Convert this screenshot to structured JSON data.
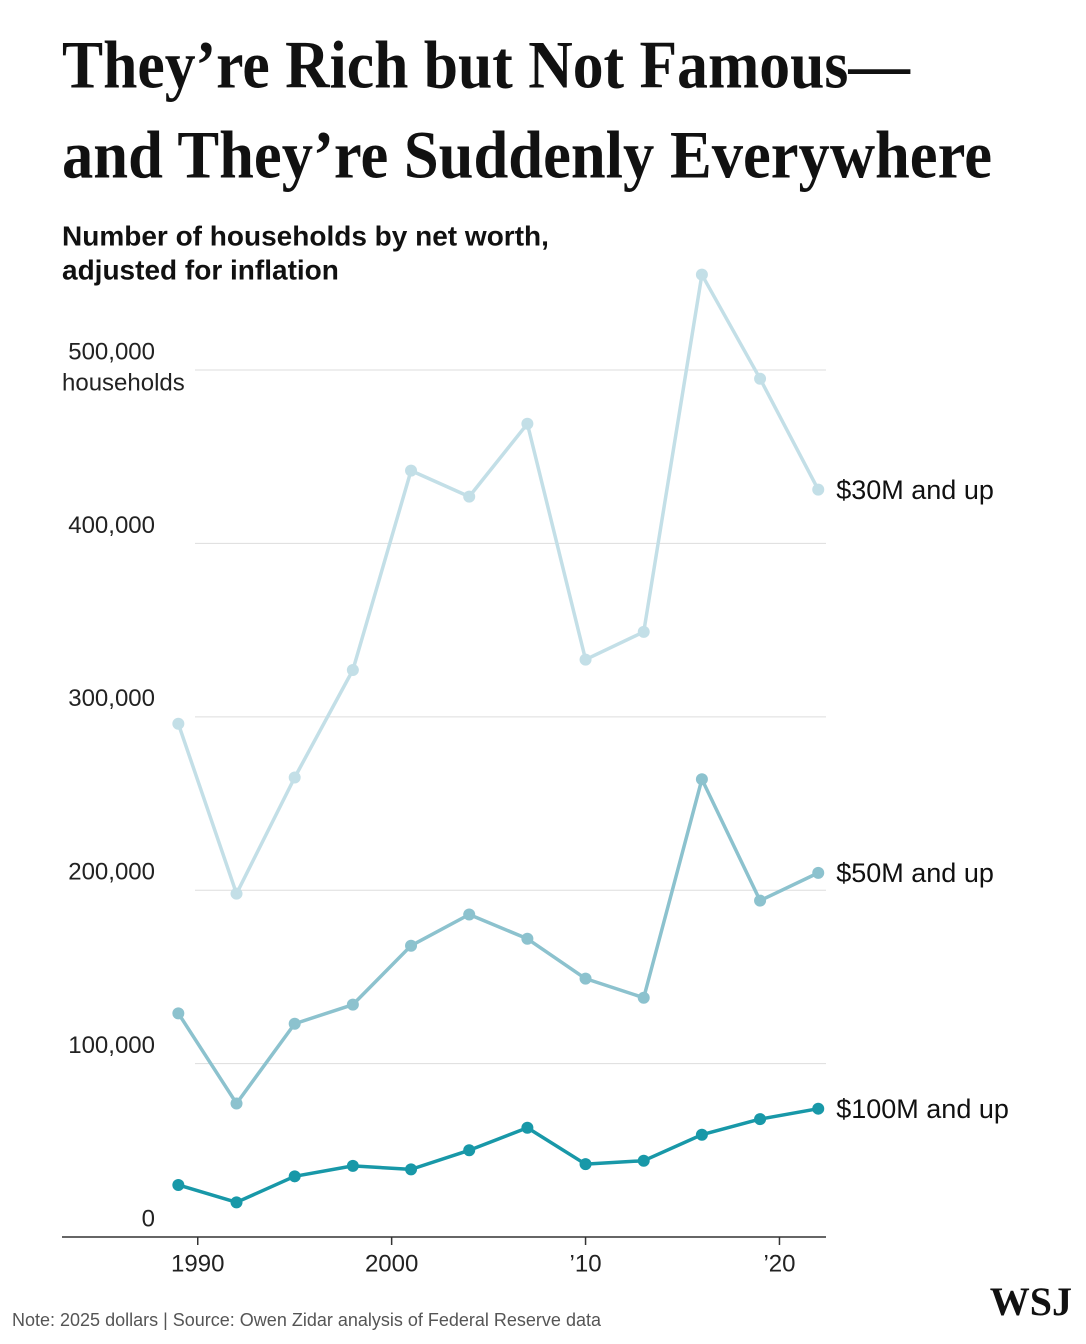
{
  "chart_data": {
    "type": "line",
    "title": [
      "They’re Rich but Not Famous—",
      "and They’re Suddenly Everywhere"
    ],
    "subtitle": [
      "Number of households by net worth,",
      "adjusted for inflation"
    ],
    "y_unit_label": "households",
    "x": [
      1989,
      1992,
      1995,
      1998,
      2001,
      2004,
      2007,
      2010,
      2013,
      2016,
      2019,
      2022
    ],
    "series": [
      {
        "name": "$30M and up",
        "color": "#c3dfe7",
        "values": [
          296000,
          198000,
          265000,
          327000,
          442000,
          427000,
          469000,
          333000,
          349000,
          555000,
          495000,
          431000
        ]
      },
      {
        "name": "$50M and up",
        "color": "#8cc2ce",
        "values": [
          129000,
          77000,
          123000,
          134000,
          168000,
          186000,
          172000,
          149000,
          138000,
          264000,
          194000,
          210000
        ]
      },
      {
        "name": "$100M and up",
        "color": "#1898a8",
        "values": [
          30000,
          20000,
          35000,
          41000,
          39000,
          50000,
          63000,
          42000,
          44000,
          59000,
          68000,
          74000
        ]
      }
    ],
    "xlim": [
      1983,
      2022.4
    ],
    "xticks": [
      1990,
      2000,
      {
        "value": 2010,
        "label": "’10"
      },
      {
        "value": 2020,
        "label": "’20"
      }
    ],
    "ylim": [
      0,
      560000
    ],
    "yticks": [
      0,
      {
        "value": 100000,
        "label": "100,000"
      },
      {
        "value": 200000,
        "label": "200,000"
      },
      {
        "value": 300000,
        "label": "300,000"
      },
      {
        "value": 400000,
        "label": "400,000"
      },
      {
        "value": 500000,
        "label": "500,000"
      }
    ],
    "grid": true,
    "note": "Note: 2025 dollars | Source: Owen Zidar analysis of Federal Reserve data",
    "logo": "WSJ"
  }
}
